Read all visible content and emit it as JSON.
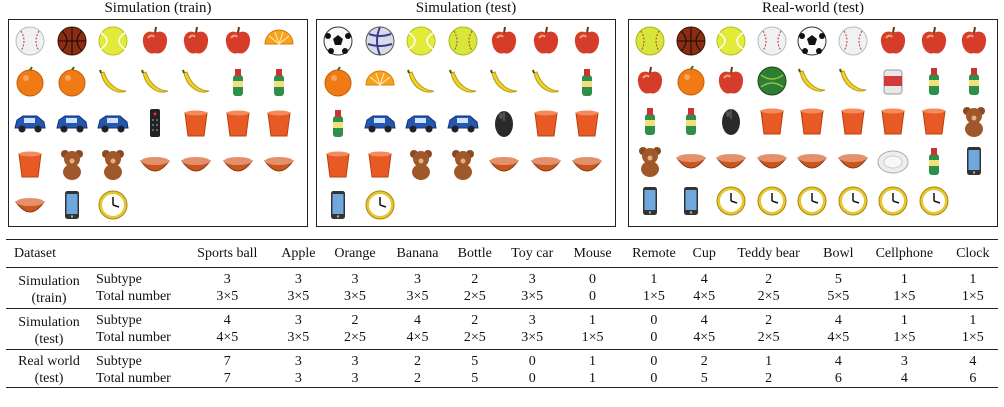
{
  "panels": [
    {
      "title": "Simulation (train)",
      "objects": [
        "baseball-icon",
        "basketball-icon",
        "tennis-ball-icon",
        "apple-icon",
        "apple-icon",
        "apple-icon",
        "orange-slice-icon",
        "orange-icon",
        "orange-icon",
        "banana-icon",
        "banana-icon",
        "banana-icon",
        "bottle-icon",
        "bottle-icon",
        "toy-car-icon",
        "toy-car-icon",
        "toy-car-icon",
        "remote-icon",
        "cup-icon",
        "cup-icon",
        "cup-icon",
        "cup-icon",
        "teddy-bear-icon",
        "teddy-bear-icon",
        "bowl-icon",
        "bowl-icon",
        "bowl-icon",
        "bowl-icon",
        "bowl-icon",
        "cellphone-icon",
        "clock-icon"
      ]
    },
    {
      "title": "Simulation (test)",
      "objects": [
        "soccer-ball-icon",
        "volleyball-icon",
        "tennis-ball-icon",
        "softball-icon",
        "apple-icon",
        "apple-icon",
        "apple-icon",
        "orange-icon",
        "orange-slice-icon",
        "banana-icon",
        "banana-icon",
        "banana-icon",
        "banana-icon",
        "bottle-icon",
        "bottle-icon",
        "toy-car-icon",
        "toy-car-icon",
        "toy-car-icon",
        "mouse-icon",
        "cup-icon",
        "cup-icon",
        "cup-icon",
        "cup-icon",
        "teddy-bear-icon",
        "teddy-bear-icon",
        "bowl-icon",
        "bowl-icon",
        "bowl-icon",
        "cellphone-icon",
        "clock-icon"
      ]
    },
    {
      "title": "Real-world (test)",
      "objects": [
        "softball-icon",
        "basketball-icon",
        "tennis-ball-icon",
        "baseball-icon",
        "soccer-ball-icon",
        "baseball-icon",
        "apple-icon",
        "apple-icon",
        "apple-icon",
        "apple-icon",
        "orange-icon",
        "apple-icon",
        "green-ball-icon",
        "banana-icon",
        "banana-icon",
        "can-icon",
        "bottle-icon",
        "bottle-icon",
        "bottle-icon",
        "bottle-icon",
        "mouse-icon",
        "cup-icon",
        "cup-icon",
        "cup-icon",
        "cup-icon",
        "cup-icon",
        "teddy-bear-icon",
        "teddy-bear-icon",
        "bowl-icon",
        "bowl-icon",
        "bowl-icon",
        "bowl-icon",
        "bowl-icon",
        "plate-icon",
        "bottle-icon",
        "cellphone-icon",
        "cellphone-icon",
        "cellphone-icon",
        "clock-icon",
        "clock-icon",
        "clock-icon",
        "clock-icon",
        "clock-icon",
        "clock-icon"
      ]
    }
  ],
  "table": {
    "headers": [
      "Dataset",
      "",
      "Sports ball",
      "Apple",
      "Orange",
      "Banana",
      "Bottle",
      "Toy car",
      "Mouse",
      "Remote",
      "Cup",
      "Teddy bear",
      "Bowl",
      "Cellphone",
      "Clock"
    ],
    "groups": [
      {
        "name_lines": [
          "Simulation",
          "(train)"
        ],
        "rows": [
          {
            "label": "Subtype",
            "values": [
              "3",
              "3",
              "3",
              "3",
              "2",
              "3",
              "0",
              "1",
              "4",
              "2",
              "5",
              "1",
              "1"
            ]
          },
          {
            "label": "Total number",
            "values": [
              "3×5",
              "3×5",
              "3×5",
              "3×5",
              "2×5",
              "3×5",
              "0",
              "1×5",
              "4×5",
              "2×5",
              "5×5",
              "1×5",
              "1×5"
            ]
          }
        ]
      },
      {
        "name_lines": [
          "Simulation",
          "(test)"
        ],
        "rows": [
          {
            "label": "Subtype",
            "values": [
              "4",
              "3",
              "2",
              "4",
              "2",
              "3",
              "1",
              "0",
              "4",
              "2",
              "4",
              "1",
              "1"
            ]
          },
          {
            "label": "Total number",
            "values": [
              "4×5",
              "3×5",
              "2×5",
              "4×5",
              "2×5",
              "3×5",
              "1×5",
              "0",
              "4×5",
              "2×5",
              "4×5",
              "1×5",
              "1×5"
            ]
          }
        ]
      },
      {
        "name_lines": [
          "Real world",
          "(test)"
        ],
        "rows": [
          {
            "label": "Subtype",
            "values": [
              "7",
              "3",
              "3",
              "2",
              "5",
              "0",
              "1",
              "0",
              "2",
              "1",
              "4",
              "3",
              "4"
            ]
          },
          {
            "label": "Total number",
            "values": [
              "7",
              "3",
              "3",
              "2",
              "5",
              "0",
              "1",
              "0",
              "5",
              "2",
              "6",
              "4",
              "6"
            ]
          }
        ]
      }
    ]
  }
}
